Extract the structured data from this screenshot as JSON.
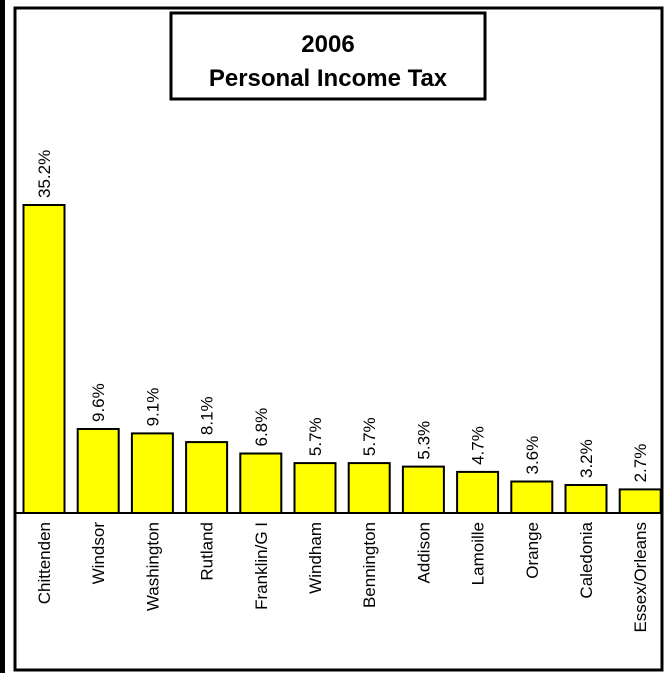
{
  "chart_data": {
    "type": "bar",
    "title_line1": "2006",
    "title_line2": "Personal Income Tax",
    "categories": [
      "Chittenden",
      "Windsor",
      "Washington",
      "Rutland",
      "Franklin/G I",
      "Windham",
      "Bennington",
      "Addison",
      "Lamoille",
      "Orange",
      "Caledonia",
      "Essex/Orleans"
    ],
    "values": [
      35.2,
      9.6,
      9.1,
      8.1,
      6.8,
      5.7,
      5.7,
      5.3,
      4.7,
      3.6,
      3.2,
      2.7
    ],
    "value_labels": [
      "35.2%",
      "9.6%",
      "9.1%",
      "8.1%",
      "6.8%",
      "5.7%",
      "5.7%",
      "5.3%",
      "4.7%",
      "3.6%",
      "3.2%",
      "2.7%"
    ],
    "ylim": [
      0,
      36
    ],
    "grid": false,
    "legend": "none",
    "colors": {
      "bar_fill": "#ffff00",
      "bar_stroke": "#000000",
      "background": "#ffffff",
      "frame": "#000000"
    }
  }
}
